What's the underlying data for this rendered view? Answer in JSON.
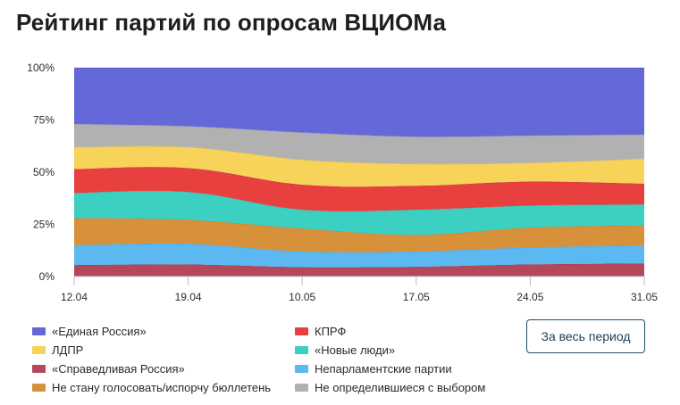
{
  "page": {
    "title": "Рейтинг партий по опросам ВЦИОМа",
    "period_button": "За весь период"
  },
  "chart_data": {
    "type": "area",
    "stacked": true,
    "y_tick_labels": [
      "0%",
      "25%",
      "50%",
      "75%",
      "100%"
    ],
    "ylim": [
      0,
      100
    ],
    "x_tick_labels": [
      "12.04",
      "19.04",
      "10.05",
      "17.05",
      "24.05",
      "31.05"
    ],
    "grid": true,
    "legend_position": "bottom",
    "series": [
      {
        "name": "«Справедливая Россия»",
        "color": "#b4485a",
        "values": [
          5.5,
          5.8,
          4.5,
          4.7,
          5.8,
          6.3
        ]
      },
      {
        "name": "Непарламентские партии",
        "color": "#5bb8f0",
        "values": [
          9.5,
          9.9,
          7.5,
          7.3,
          8.2,
          8.6
        ]
      },
      {
        "name": "Не стану голосовать/испорчу бюллетень",
        "color": "#d6913a",
        "values": [
          13.0,
          11.5,
          11.0,
          8.0,
          9.5,
          9.6
        ]
      },
      {
        "name": "«Новые люди»",
        "color": "#3bd0c2",
        "values": [
          12.0,
          13.3,
          9.0,
          12.0,
          10.5,
          10.0
        ]
      },
      {
        "name": "КПРФ",
        "color": "#e8403f",
        "values": [
          11.5,
          11.5,
          12.0,
          11.5,
          11.5,
          10.0
        ]
      },
      {
        "name": "ЛДПР",
        "color": "#f8d35a",
        "values": [
          10.5,
          10.0,
          12.0,
          10.5,
          9.0,
          12.0
        ]
      },
      {
        "name": "Не определившиеся с выбором",
        "color": "#b1b1b1",
        "values": [
          11.0,
          10.0,
          13.0,
          13.0,
          13.0,
          11.5
        ]
      },
      {
        "name": "«Единая Россия»",
        "color": "#6568d8",
        "values": [
          27.0,
          28.0,
          31.0,
          33.0,
          32.5,
          32.0
        ]
      }
    ],
    "legend_order": [
      "«Единая Россия»",
      "КПРФ",
      "ЛДПР",
      "«Новые люди»",
      "«Справедливая Россия»",
      "Непарламентские партии",
      "Не стану голосовать/испорчу бюллетень",
      "Не определившиеся с выбором"
    ]
  }
}
